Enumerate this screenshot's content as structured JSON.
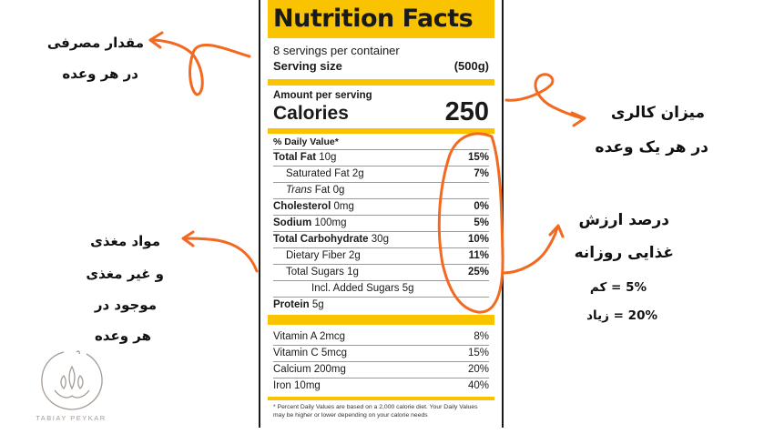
{
  "label": {
    "title": "Nutrition Facts",
    "servings": "8 servings per container",
    "serving_size_label": "Serving size",
    "serving_size_value": "(500g)",
    "amount_per_serving": "Amount per serving",
    "calories_label": "Calories",
    "calories_value": "250",
    "dv_header": "% Daily Value*",
    "nutrients": [
      {
        "name": "Total Fat",
        "amount": "10g",
        "dv": "15%"
      },
      {
        "name": "Saturated Fat",
        "amount": "2g",
        "dv": "7%"
      },
      {
        "name_italic": "Trans",
        "name": "Fat",
        "amount": "0g",
        "dv": ""
      },
      {
        "name": "Cholesterol",
        "amount": "0mg",
        "dv": "0%"
      },
      {
        "name": "Sodium",
        "amount": "100mg",
        "dv": "5%"
      },
      {
        "name": "Total Carbohydrate",
        "amount": "30g",
        "dv": "10%"
      },
      {
        "name": "Dietary Fiber",
        "amount": "2g",
        "dv": "11%"
      },
      {
        "name": "Total Sugars",
        "amount": "1g",
        "dv": "25%"
      },
      {
        "name": "Incl. Added Sugars",
        "amount": "5g",
        "dv": ""
      },
      {
        "name": "Protein",
        "amount": "5g",
        "dv": ""
      }
    ],
    "vitamins": [
      {
        "name": "Vitamin A",
        "amount": "2mcg",
        "dv": "8%"
      },
      {
        "name": "Vitamin C",
        "amount": "5mcg",
        "dv": "15%"
      },
      {
        "name": "Calcium",
        "amount": "200mg",
        "dv": "20%"
      },
      {
        "name": "Iron",
        "amount": "10mg",
        "dv": "40%"
      }
    ],
    "footnote": "* Percent Daily Values are based on a 2,000 calorie diet. Your Daily Values may be higher or lower depending on your calorie needs"
  },
  "annotations": {
    "serving_line1": "مقدار مصرفی",
    "serving_line2": "در هر وعده",
    "calorie_line1": "میزان کالری",
    "calorie_line2": "در هر یک وعده",
    "dv_line1": "درصد ارزش",
    "dv_line2": "غذایی روزانه",
    "dv_low": "5% = کم",
    "dv_high": "20% = زیاد",
    "nutrients_line1": "مواد مغذی",
    "nutrients_line2": "و غیر مغذی",
    "nutrients_line3": "موجود در",
    "nutrients_line4": "هر وعده"
  },
  "brand": "TABIAY PEYKAR",
  "colors": {
    "accent": "#f9c300",
    "annotation": "#f26a21",
    "logo": "#a79b93"
  }
}
